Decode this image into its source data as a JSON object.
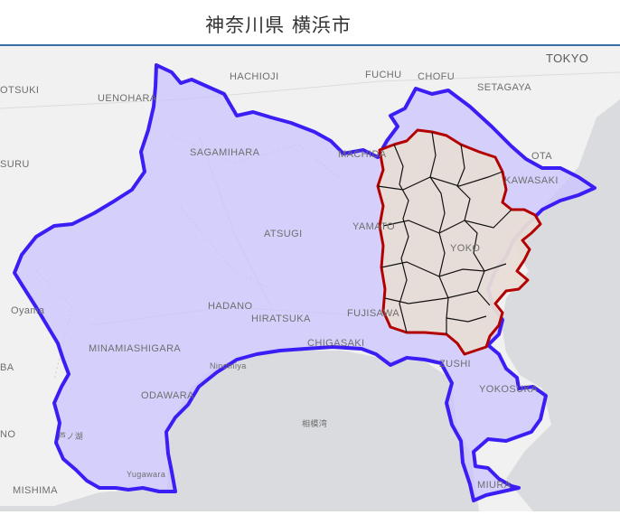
{
  "title": "神奈川県 横浜市",
  "colors": {
    "prefecture_border": "#3a1ef5",
    "prefecture_fill": "#c9c2ff",
    "city_border": "#b30000",
    "city_fill": "#e8ddd6",
    "ward_border": "#111111",
    "sea": "#d9dbdf",
    "land": "#f1f1f1",
    "header_rule": "#3b6ea8"
  },
  "map": {
    "labels": [
      "TOKYO",
      "HACHIOJI",
      "FUCHU",
      "CHOFU",
      "SETAGAYA",
      "OTSUKI",
      "UENOHARA",
      "SAGAMIHARA",
      "MACHIDA",
      "OTA",
      "SURU",
      "KAWASAKI",
      "ATSUGI",
      "YAMATO",
      "YOKO",
      "Oyama",
      "HADANO",
      "HIRATSUKA",
      "FUJISAWA",
      "MINAMIASHIGARA",
      "CHIGASAKI",
      "BA",
      "Ninomiya",
      "ZUSHI",
      "ODAWARA",
      "YOKOSUKA",
      "相模湾",
      "NO",
      "芦ノ湖",
      "Yugawara",
      "MISHIMA",
      "MIURA"
    ]
  }
}
